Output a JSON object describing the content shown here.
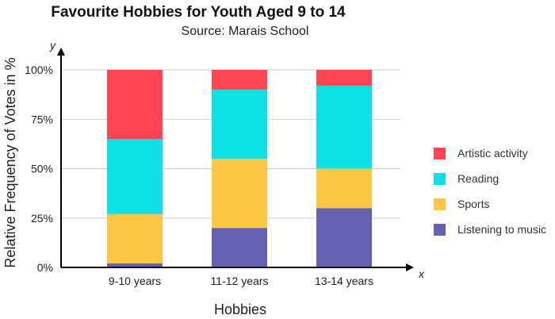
{
  "chart_data": {
    "type": "bar",
    "stacked": true,
    "title": "Favourite Hobbies for Youth Aged 9 to 14",
    "subtitle": "Source: Marais School",
    "xlabel": "Hobbies",
    "ylabel": "Relative Frequency of Votes in %",
    "x_axis_letter": "x",
    "y_axis_letter": "y",
    "ylim": [
      0,
      100
    ],
    "y_ticks": [
      0,
      25,
      50,
      75,
      100
    ],
    "y_tick_suffix": "%",
    "grid": true,
    "legend_position": "right",
    "categories": [
      "9-10 years",
      "11-12 years",
      "13-14 years"
    ],
    "series": [
      {
        "name": "Listening to music",
        "color": "#6461b2",
        "values": [
          2,
          20,
          30
        ]
      },
      {
        "name": "Sports",
        "color": "#fdc745",
        "values": [
          25,
          35,
          20
        ]
      },
      {
        "name": "Reading",
        "color": "#0ee0e8",
        "values": [
          38,
          35,
          42
        ]
      },
      {
        "name": "Artistic activity",
        "color": "#fe4452",
        "values": [
          35,
          10,
          8
        ]
      }
    ]
  }
}
